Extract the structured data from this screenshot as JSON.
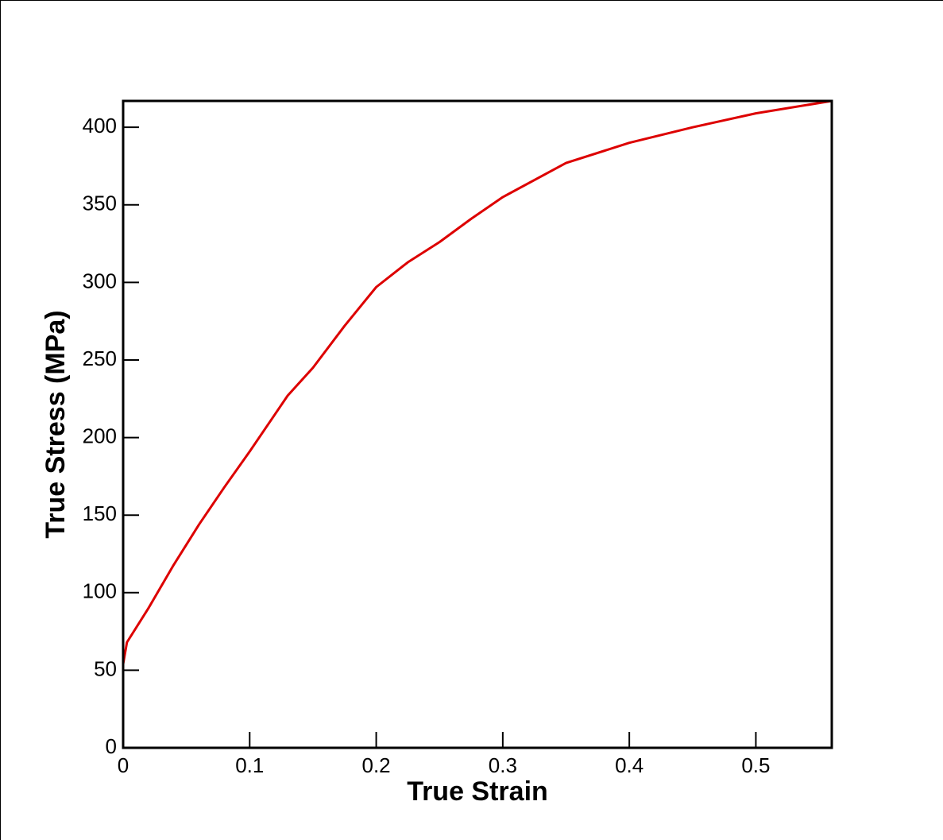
{
  "chart_data": {
    "type": "line",
    "x_label": "True Strain",
    "y_label": "True Stress (MPa)",
    "xlim": [
      0,
      0.56
    ],
    "ylim": [
      0,
      417
    ],
    "xticks": [
      0,
      0.1,
      0.2,
      0.3,
      0.4,
      0.5
    ],
    "yticks": [
      0,
      50,
      100,
      150,
      200,
      250,
      300,
      350,
      400
    ],
    "grid": false,
    "series": [
      {
        "name": "True Stress",
        "color": "#dd0000",
        "x": [
          0,
          0.003,
          0.02,
          0.04,
          0.06,
          0.08,
          0.1,
          0.12,
          0.13,
          0.15,
          0.175,
          0.2,
          0.225,
          0.25,
          0.275,
          0.3,
          0.35,
          0.4,
          0.45,
          0.5,
          0.56
        ],
        "values": [
          54,
          68,
          90,
          118,
          144,
          168,
          191,
          215,
          227,
          245,
          272,
          297,
          313,
          326,
          341,
          355,
          377,
          390,
          400,
          409,
          417
        ]
      }
    ]
  }
}
